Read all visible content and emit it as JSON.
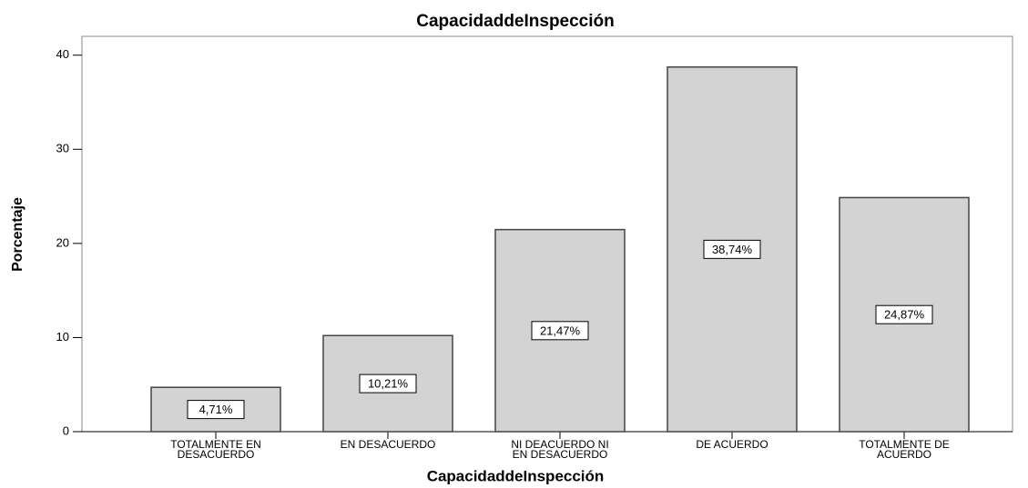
{
  "chart_data": {
    "type": "bar",
    "title": "CapacidaddeInspección",
    "x_label": "CapacidaddeInspección",
    "y_label": "Porcentaje",
    "categories": [
      "TOTALMENTE EN DESACUERDO",
      "EN DESACUERDO",
      "NI DEACUERDO NI EN DESACUERDO",
      "DE ACUERDO",
      "TOTALMENTE DE ACUERDO"
    ],
    "values": [
      4.71,
      10.21,
      21.47,
      38.74,
      24.87
    ],
    "value_labels": [
      "4,71%",
      "10,21%",
      "21,47%",
      "38,74%",
      "24,87%"
    ],
    "color": "#d3d3d3",
    "ylim": [
      0,
      42
    ],
    "yticks": [
      0,
      10,
      20,
      30,
      40
    ],
    "grid": false
  }
}
